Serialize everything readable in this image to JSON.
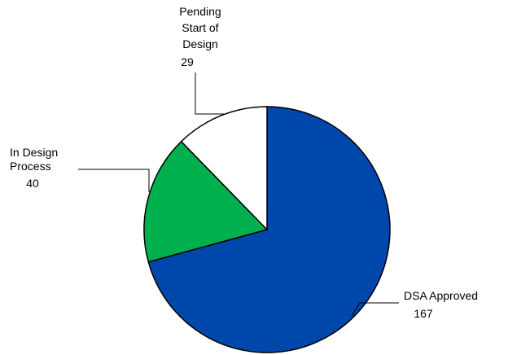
{
  "chart_data": {
    "type": "pie",
    "slices": [
      {
        "label_lines": [
          "DSA Approved"
        ],
        "value": 167,
        "value_text": "167",
        "color": "#0047AB"
      },
      {
        "label_lines": [
          "In Design",
          "Process"
        ],
        "value": 40,
        "value_text": "40",
        "color": "#00B04F"
      },
      {
        "label_lines": [
          "Pending",
          "Start of",
          "Design"
        ],
        "value": 29,
        "value_text": "29",
        "color": "#FFFFFF"
      }
    ],
    "start_angle": "12 o'clock",
    "direction": "clockwise",
    "outline_color": "#000000"
  }
}
